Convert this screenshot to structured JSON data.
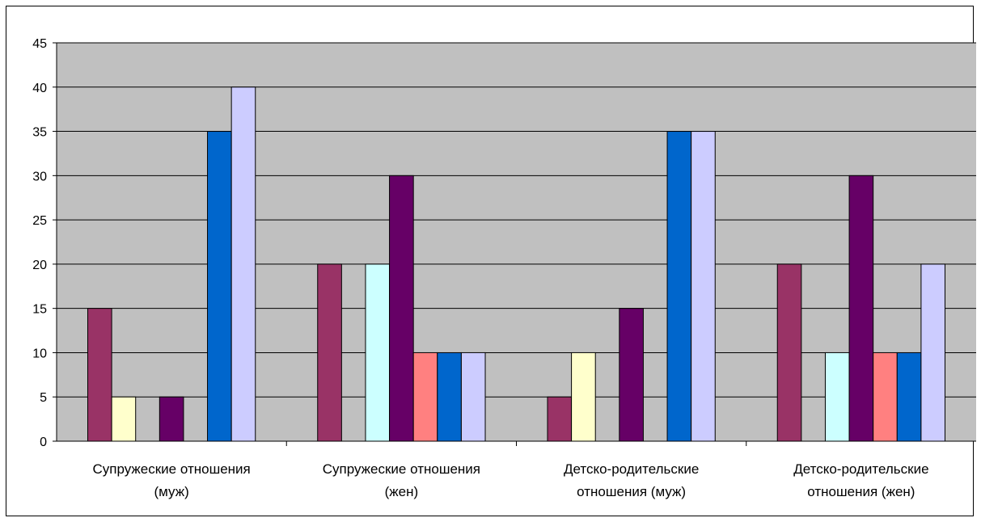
{
  "chart_data": {
    "type": "bar",
    "title": "",
    "xlabel": "",
    "ylabel": "",
    "ylim": [
      0,
      45
    ],
    "ytick_step": 5,
    "grid": true,
    "legend": "none",
    "plot_background": "#c0c0c0",
    "categories": [
      [
        "Супружеские отношения",
        "(муж)"
      ],
      [
        "Супружеские отношения",
        "(жен)"
      ],
      [
        "Детско-родительские",
        "отношения (муж)"
      ],
      [
        "Детско-родительские",
        "отношения (жен)"
      ]
    ],
    "series": [
      {
        "color": "#993366",
        "values": [
          15,
          20,
          5,
          20
        ]
      },
      {
        "color": "#ffffcc",
        "values": [
          5,
          0,
          10,
          0
        ]
      },
      {
        "color": "#ccffff",
        "values": [
          0,
          20,
          0,
          10
        ]
      },
      {
        "color": "#660066",
        "values": [
          5,
          30,
          15,
          30
        ]
      },
      {
        "color": "#ff8080",
        "values": [
          0,
          10,
          0,
          10
        ]
      },
      {
        "color": "#0066cc",
        "values": [
          35,
          10,
          35,
          10
        ]
      },
      {
        "color": "#ccccff",
        "values": [
          40,
          10,
          35,
          20
        ]
      }
    ]
  }
}
